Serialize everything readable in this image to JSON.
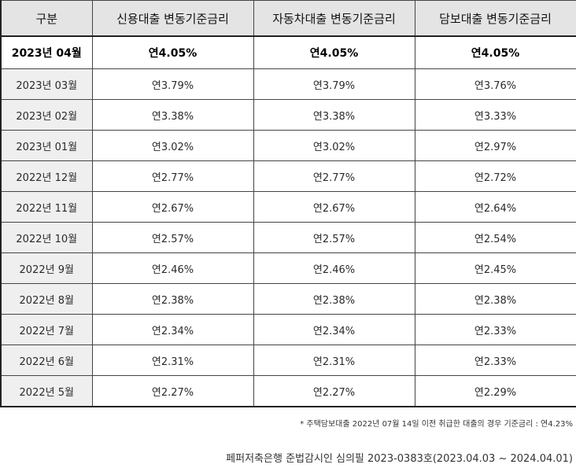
{
  "table": {
    "headers": [
      "구분",
      "신용대출 변동기준금리",
      "자동차대출 변동기준금리",
      "담보대출 변동기준금리"
    ],
    "rows": [
      {
        "period": "2023년 04월",
        "credit": "연4.05%",
        "auto": "연4.05%",
        "mortgage": "연4.05%"
      },
      {
        "period": "2023년 03월",
        "credit": "연3.79%",
        "auto": "연3.79%",
        "mortgage": "연3.76%"
      },
      {
        "period": "2023년 02월",
        "credit": "연3.38%",
        "auto": "연3.38%",
        "mortgage": "연3.33%"
      },
      {
        "period": "2023년 01월",
        "credit": "연3.02%",
        "auto": "연3.02%",
        "mortgage": "연2.97%"
      },
      {
        "period": "2022년 12월",
        "credit": "연2.77%",
        "auto": "연2.77%",
        "mortgage": "연2.72%"
      },
      {
        "period": "2022년 11월",
        "credit": "연2.67%",
        "auto": "연2.67%",
        "mortgage": "연2.64%"
      },
      {
        "period": "2022년 10월",
        "credit": "연2.57%",
        "auto": "연2.57%",
        "mortgage": "연2.54%"
      },
      {
        "period": "2022년 9월",
        "credit": "연2.46%",
        "auto": "연2.46%",
        "mortgage": "연2.45%"
      },
      {
        "period": "2022년 8월",
        "credit": "연2.38%",
        "auto": "연2.38%",
        "mortgage": "연2.38%"
      },
      {
        "period": "2022년 7월",
        "credit": "연2.34%",
        "auto": "연2.34%",
        "mortgage": "연2.33%"
      },
      {
        "period": "2022년 6월",
        "credit": "연2.31%",
        "auto": "연2.31%",
        "mortgage": "연2.33%"
      },
      {
        "period": "2022년 5월",
        "credit": "연2.27%",
        "auto": "연2.27%",
        "mortgage": "연2.29%"
      }
    ]
  },
  "footnote": "* 주택담보대출 2022년 07월 14일 이전 취급한 대출의 경우 기준금리 : 연4.23%",
  "deliberation": "페퍼저축은행 준법감시인 심의필 2023-0383호(2023.04.03 ~ 2024.04.01)"
}
